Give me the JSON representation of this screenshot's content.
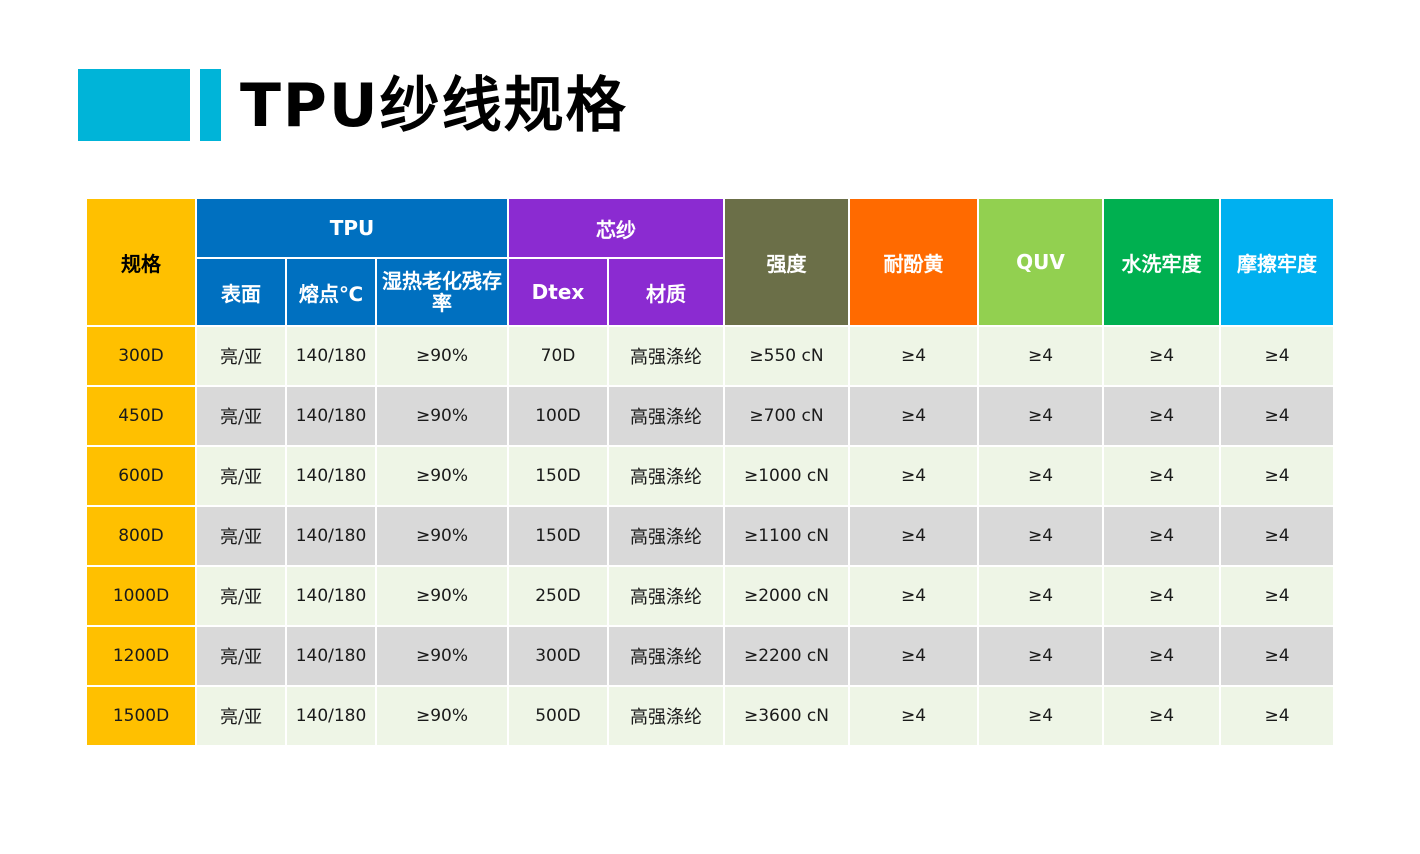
{
  "title": "TPU纱线规格",
  "headers": {
    "spec": "规格",
    "tpu_group": "TPU",
    "core_group": "芯纱",
    "strength": "强度",
    "yellowing": "耐酚黄",
    "quv": "QUV",
    "wash": "水洗牢度",
    "rub": "摩擦牢度",
    "surface": "表面",
    "melting": "熔点℃",
    "aging": "湿热老化残存率",
    "dtex": "Dtex",
    "material": "材质"
  },
  "rows": [
    [
      "300D",
      "亮/亚",
      "140/180",
      "≥90%",
      "70D",
      "高强涤纶",
      "≥550 cN",
      "≥4",
      "≥4",
      "≥4",
      "≥4"
    ],
    [
      "450D",
      "亮/亚",
      "140/180",
      "≥90%",
      "100D",
      "高强涤纶",
      "≥700 cN",
      "≥4",
      "≥4",
      "≥4",
      "≥4"
    ],
    [
      "600D",
      "亮/亚",
      "140/180",
      "≥90%",
      "150D",
      "高强涤纶",
      "≥1000 cN",
      "≥4",
      "≥4",
      "≥4",
      "≥4"
    ],
    [
      "800D",
      "亮/亚",
      "140/180",
      "≥90%",
      "150D",
      "高强涤纶",
      "≥1100 cN",
      "≥4",
      "≥4",
      "≥4",
      "≥4"
    ],
    [
      "1000D",
      "亮/亚",
      "140/180",
      "≥90%",
      "250D",
      "高强涤纶",
      "≥2000 cN",
      "≥4",
      "≥4",
      "≥4",
      "≥4"
    ],
    [
      "1200D",
      "亮/亚",
      "140/180",
      "≥90%",
      "300D",
      "高强涤纶",
      "≥2200 cN",
      "≥4",
      "≥4",
      "≥4",
      "≥4"
    ],
    [
      "1500D",
      "亮/亚",
      "140/180",
      "≥90%",
      "500D",
      "高强涤纶",
      "≥3600 cN",
      "≥4",
      "≥4",
      "≥4",
      "≥4"
    ]
  ],
  "colors": {
    "accent": "#00b4d8",
    "spec": "#ffc000",
    "tpu": "#0070c0",
    "core": "#8b2bd1",
    "strength": "#6b6f48",
    "yellowing": "#ff6a00",
    "quv": "#92d050",
    "wash": "#00b050",
    "rub": "#00b0f0",
    "row_light": "#eef5e6",
    "row_dark": "#d9d9d9"
  }
}
